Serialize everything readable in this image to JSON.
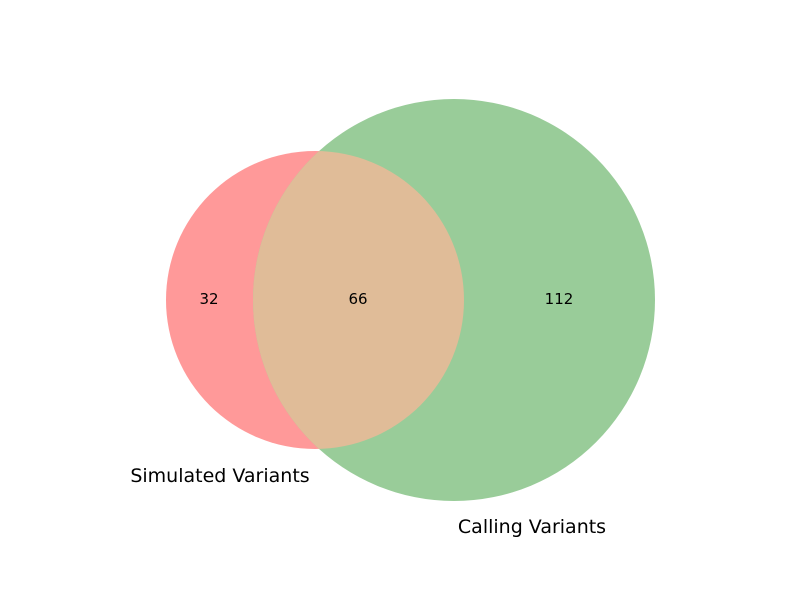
{
  "chart_data": {
    "type": "venn",
    "sets": [
      {
        "name": "Simulated Variants",
        "color": "#ff9999"
      },
      {
        "name": "Calling Variants",
        "color": "#99cc99"
      }
    ],
    "overlap_color": "#e0bc98",
    "regions": {
      "simulated_only": 32,
      "both": 66,
      "calling_only": 112
    }
  }
}
